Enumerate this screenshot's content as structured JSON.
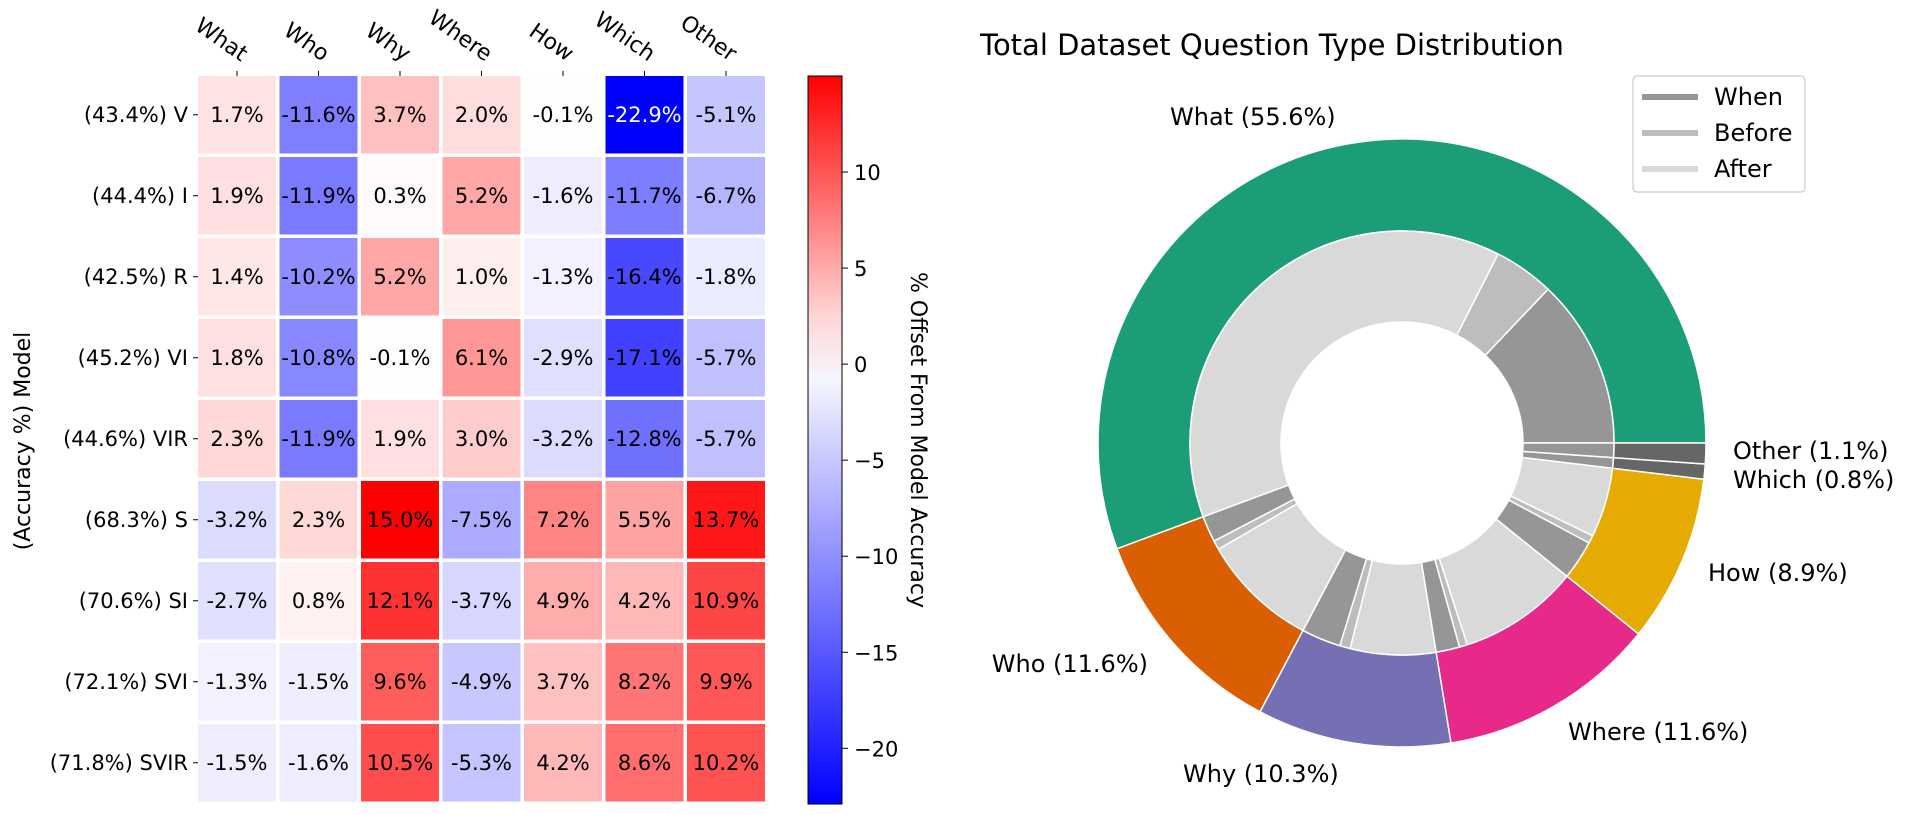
{
  "chart_data": [
    {
      "type": "heatmap",
      "title": "",
      "xlabel": "",
      "ylabel": "(Accuracy %) Model",
      "columns": [
        "What",
        "Who",
        "Why",
        "Where",
        "How",
        "Which",
        "Other"
      ],
      "rows": [
        "(43.4%) V",
        "(44.4%) I",
        "(42.5%) R",
        "(45.2%) VI",
        "(44.6%) VIR",
        "(68.3%) S",
        "(70.6%) SI",
        "(72.1%) SVI",
        "(71.8%) SVIR"
      ],
      "values": [
        [
          1.7,
          -11.6,
          3.7,
          2.0,
          -0.1,
          -22.9,
          -5.1
        ],
        [
          1.9,
          -11.9,
          0.3,
          5.2,
          -1.6,
          -11.7,
          -6.7
        ],
        [
          1.4,
          -10.2,
          5.2,
          1.0,
          -1.3,
          -16.4,
          -1.8
        ],
        [
          1.8,
          -10.8,
          -0.1,
          6.1,
          -2.9,
          -17.1,
          -5.7
        ],
        [
          2.3,
          -11.9,
          1.9,
          3.0,
          -3.2,
          -12.8,
          -5.7
        ],
        [
          -3.2,
          2.3,
          15.0,
          -7.5,
          7.2,
          5.5,
          13.7
        ],
        [
          -2.7,
          0.8,
          12.1,
          -3.7,
          4.9,
          4.2,
          10.9
        ],
        [
          -1.3,
          -1.5,
          9.6,
          -4.9,
          3.7,
          8.2,
          9.9
        ],
        [
          -1.5,
          -1.6,
          10.5,
          -5.3,
          4.2,
          8.6,
          10.2
        ]
      ],
      "cell_labels": [
        [
          "1.7%",
          "-11.6%",
          "3.7%",
          "2.0%",
          "-0.1%",
          "-22.9%",
          "-5.1%"
        ],
        [
          "1.9%",
          "-11.9%",
          "0.3%",
          "5.2%",
          "-1.6%",
          "-11.7%",
          "-6.7%"
        ],
        [
          "1.4%",
          "-10.2%",
          "5.2%",
          "1.0%",
          "-1.3%",
          "-16.4%",
          "-1.8%"
        ],
        [
          "1.8%",
          "-10.8%",
          "-0.1%",
          "6.1%",
          "-2.9%",
          "-17.1%",
          "-5.7%"
        ],
        [
          "2.3%",
          "-11.9%",
          "1.9%",
          "3.0%",
          "-3.2%",
          "-12.8%",
          "-5.7%"
        ],
        [
          "-3.2%",
          "2.3%",
          "15.0%",
          "-7.5%",
          "7.2%",
          "5.5%",
          "13.7%"
        ],
        [
          "-2.7%",
          "0.8%",
          "12.1%",
          "-3.7%",
          "4.9%",
          "4.2%",
          "10.9%"
        ],
        [
          "-1.3%",
          "-1.5%",
          "9.6%",
          "-4.9%",
          "3.7%",
          "8.2%",
          "9.9%"
        ],
        [
          "-1.5%",
          "-1.6%",
          "10.5%",
          "-5.3%",
          "4.2%",
          "8.6%",
          "10.2%"
        ]
      ],
      "colormap": "bwr",
      "color_range": [
        -22.9,
        15.0
      ],
      "colorbar": {
        "label": "% Offset From Model Accuracy",
        "ticks": [
          10,
          5,
          0,
          -5,
          -10,
          -15,
          -20
        ],
        "tick_labels": [
          "10",
          "5",
          "0",
          "−5",
          "−10",
          "−15",
          "−20"
        ]
      }
    },
    {
      "type": "pie",
      "subtype": "nested donut",
      "title": "Total Dataset Question Type Distribution",
      "outer_ring": [
        {
          "label": "What (55.6%)",
          "value": 55.6,
          "color": "#1b9e77"
        },
        {
          "label": "Who (11.6%)",
          "value": 11.6,
          "color": "#d95f02"
        },
        {
          "label": "Why (10.3%)",
          "value": 10.3,
          "color": "#7570b3"
        },
        {
          "label": "Where (11.6%)",
          "value": 11.6,
          "color": "#e7298a"
        },
        {
          "label": "How (8.9%)",
          "value": 8.9,
          "color": "#e6ab02"
        },
        {
          "label": "Which (0.8%)",
          "value": 0.8,
          "color": "#666666"
        },
        {
          "label": "Other (1.1%)",
          "value": 1.1,
          "color": "#666666"
        }
      ],
      "inner_ring": [
        {
          "category": "What",
          "When": 12.9,
          "Before": 4.6,
          "After": 38.1
        },
        {
          "category": "Who",
          "When": 2.0,
          "Before": 0.7,
          "After": 8.9
        },
        {
          "category": "Why",
          "When": 3.0,
          "Before": 0.8,
          "After": 6.5
        },
        {
          "category": "Where",
          "When": 1.8,
          "Before": 0.6,
          "After": 9.2
        },
        {
          "category": "How",
          "When": 3.0,
          "Before": 0.6,
          "After": 5.3
        },
        {
          "category": "Which",
          "When": 0.8,
          "Before": 0.0,
          "After": 0.0
        },
        {
          "category": "Other",
          "When": 1.1,
          "Before": 0.0,
          "After": 0.0
        }
      ],
      "legend": {
        "placement": "top-right",
        "entries": [
          {
            "label": "When",
            "color": "#969696"
          },
          {
            "label": "Before",
            "color": "#bdbdbd"
          },
          {
            "label": "After",
            "color": "#d9d9d9"
          }
        ]
      }
    }
  ]
}
